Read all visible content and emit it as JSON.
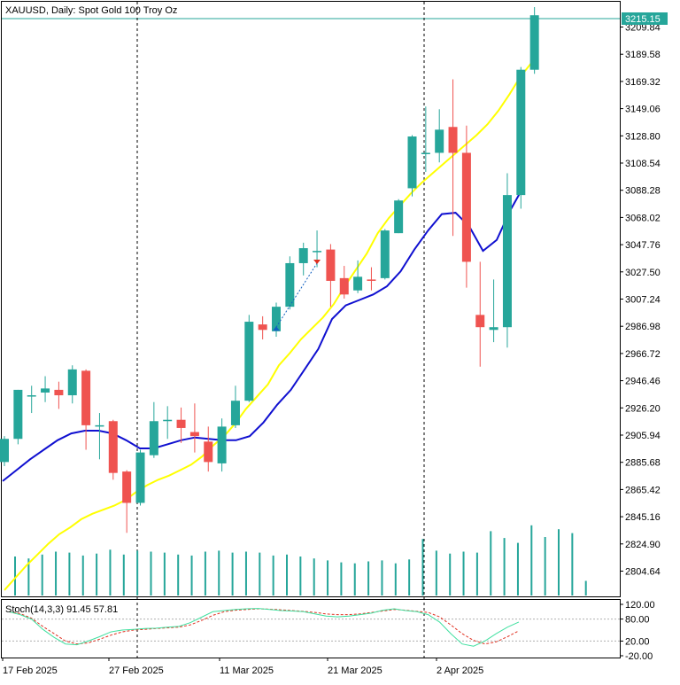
{
  "header": {
    "title": "XAUUSD, Daily:  Spot Gold 100 Troy Oz"
  },
  "price_axis": {
    "ticks": [
      "3209.84",
      "3189.58",
      "3169.32",
      "3149.06",
      "3128.80",
      "3108.54",
      "3088.28",
      "3068.02",
      "3047.76",
      "3027.50",
      "3007.24",
      "2986.98",
      "2966.72",
      "2946.46",
      "2926.20",
      "2905.94",
      "2885.68",
      "2865.42",
      "2845.16",
      "2824.90",
      "2804.64"
    ],
    "current_price_label": "3215.15"
  },
  "stoch_panel": {
    "label": "Stoch(14,3,3) 91.45 57.81",
    "ticks": [
      "120.00",
      "80.00",
      "20.00",
      "-20.00"
    ]
  },
  "time_axis": {
    "labels": [
      "17 Feb 2025",
      "27 Feb 2025",
      "11 Mar 2025",
      "21 Mar 2025",
      "2 Apr 2025"
    ]
  },
  "colors": {
    "bull": "#26a69a",
    "bear": "#ef5350",
    "ma_fast": "#1010d0",
    "ma_slow": "#ffff00",
    "stoch_main": "#40e0a0",
    "stoch_signal": "#e03020",
    "price_tag_bg": "#26a69a"
  },
  "chart_data": {
    "type": "candlestick",
    "title": "XAUUSD, Daily:  Spot Gold 100 Troy Oz",
    "ylim": [
      2789.0,
      3221.0
    ],
    "candles": [
      {
        "o": 2887.0,
        "h": 2906.0,
        "l": 2884.0,
        "c": 2904.0
      },
      {
        "o": 2904.0,
        "h": 2940.0,
        "l": 2900.0,
        "c": 2940.0
      },
      {
        "o": 2936.0,
        "h": 2943.0,
        "l": 2923.0,
        "c": 2936.0
      },
      {
        "o": 2938.0,
        "h": 2950.0,
        "l": 2931.0,
        "c": 2941.0
      },
      {
        "o": 2940.0,
        "h": 2946.0,
        "l": 2926.0,
        "c": 2936.0
      },
      {
        "o": 2936.0,
        "h": 2958.0,
        "l": 2930.0,
        "c": 2955.0
      },
      {
        "o": 2954.0,
        "h": 2955.0,
        "l": 2896.0,
        "c": 2914.0
      },
      {
        "o": 2913.0,
        "h": 2923.0,
        "l": 2889.0,
        "c": 2914.0
      },
      {
        "o": 2917.0,
        "h": 2918.0,
        "l": 2874.0,
        "c": 2879.0
      },
      {
        "o": 2880.0,
        "h": 2881.0,
        "l": 2835.0,
        "c": 2857.0
      },
      {
        "o": 2857.0,
        "h": 2896.0,
        "l": 2855.0,
        "c": 2894.0
      },
      {
        "o": 2892.0,
        "h": 2931.0,
        "l": 2890.0,
        "c": 2917.0
      },
      {
        "o": 2917.0,
        "h": 2928.0,
        "l": 2904.0,
        "c": 2918.0
      },
      {
        "o": 2918.0,
        "h": 2927.0,
        "l": 2901.0,
        "c": 2912.0
      },
      {
        "o": 2909.0,
        "h": 2930.0,
        "l": 2894.0,
        "c": 2906.0
      },
      {
        "o": 2902.0,
        "h": 2913.0,
        "l": 2880.0,
        "c": 2887.0
      },
      {
        "o": 2886.0,
        "h": 2919.0,
        "l": 2880.0,
        "c": 2913.0
      },
      {
        "o": 2914.0,
        "h": 2943.0,
        "l": 2912.0,
        "c": 2932.0
      },
      {
        "o": 2932.0,
        "h": 2995.0,
        "l": 2931.0,
        "c": 2990.0
      },
      {
        "o": 2988.0,
        "h": 2994.0,
        "l": 2977.0,
        "c": 2984.0
      },
      {
        "o": 2983.0,
        "h": 3004.0,
        "l": 2979.0,
        "c": 3001.0
      },
      {
        "o": 3001.0,
        "h": 3038.0,
        "l": 2999.0,
        "c": 3033.0
      },
      {
        "o": 3033.0,
        "h": 3048.0,
        "l": 3024.0,
        "c": 3044.0
      },
      {
        "o": 3042.0,
        "h": 3057.0,
        "l": 3030.0,
        "c": 3042.0
      },
      {
        "o": 3043.0,
        "h": 3047.0,
        "l": 3001.0,
        "c": 3020.0
      },
      {
        "o": 3022.0,
        "h": 3031.0,
        "l": 3007.0,
        "c": 3010.0
      },
      {
        "o": 3013.0,
        "h": 3035.0,
        "l": 3011.0,
        "c": 3023.0
      },
      {
        "o": 3021.0,
        "h": 3030.0,
        "l": 3013.0,
        "c": 3020.0
      },
      {
        "o": 3022.0,
        "h": 3058.0,
        "l": 3021.0,
        "c": 3057.0
      },
      {
        "o": 3055.0,
        "h": 3080.0,
        "l": 3055.0,
        "c": 3079.0
      },
      {
        "o": 3088.0,
        "h": 3127.0,
        "l": 3082.0,
        "c": 3126.0
      },
      {
        "o": 3113.0,
        "h": 3148.0,
        "l": 3100.0,
        "c": 3114.0
      },
      {
        "o": 3114.0,
        "h": 3146.0,
        "l": 3107.0,
        "c": 3131.0
      },
      {
        "o": 3133.0,
        "h": 3168.0,
        "l": 3053.0,
        "c": 3114.0
      },
      {
        "o": 3114.0,
        "h": 3134.0,
        "l": 3015.0,
        "c": 3034.0
      },
      {
        "o": 2995.0,
        "h": 3034.0,
        "l": 2957.0,
        "c": 2986.0
      },
      {
        "o": 2984.0,
        "h": 3021.0,
        "l": 2975.0,
        "c": 2986.0
      },
      {
        "o": 2986.0,
        "h": 3099.0,
        "l": 2971.0,
        "c": 3083.0
      },
      {
        "o": 3083.0,
        "h": 3177.0,
        "l": 3073.0,
        "c": 3175.0
      },
      {
        "o": 3175.0,
        "h": 3221.0,
        "l": 3172.0,
        "c": 3215.0
      }
    ],
    "ma_fast": {
      "x_start_index": 0,
      "values": [
        2873,
        2881,
        2889,
        2896,
        2903,
        2908,
        2910,
        2910,
        2908,
        2903,
        2897,
        2897,
        2900,
        2903,
        2905,
        2904,
        2903,
        2903,
        2906,
        2916,
        2929,
        2940,
        2955,
        2970,
        2992,
        3002,
        3006,
        3010,
        3016,
        3027,
        3043,
        3057,
        3069,
        3070,
        3060,
        3042,
        3050,
        3072,
        3090
      ]
    },
    "ma_slow": {
      "values": [
        2793,
        2802,
        2811,
        2819,
        2827,
        2834,
        2839,
        2845,
        2849,
        2852,
        2855,
        2859,
        2865,
        2870,
        2874,
        2877,
        2881,
        2885,
        2891,
        2899,
        2906,
        2915,
        2926,
        2935,
        2944,
        2958,
        2967,
        2977,
        2985,
        2993,
        3003,
        3016,
        3028,
        3040,
        3055,
        3066,
        3075,
        3084,
        3092,
        3099,
        3106,
        3113,
        3120,
        3127,
        3135,
        3145,
        3157,
        3170,
        3180
      ]
    },
    "volume": {
      "values": [
        0.4,
        0.38,
        0.42,
        0.45,
        0.44,
        0.41,
        0.43,
        0.47,
        0.42,
        0.46,
        0.45,
        0.44,
        0.42,
        0.41,
        0.45,
        0.46,
        0.44,
        0.45,
        0.44,
        0.41,
        0.42,
        0.4,
        0.38,
        0.36,
        0.34,
        0.33,
        0.35,
        0.36,
        0.33,
        0.37,
        0.58,
        0.46,
        0.43,
        0.45,
        0.44,
        0.66,
        0.59,
        0.54,
        0.72,
        0.6,
        0.68,
        0.64,
        0.15
      ],
      "max": 1.0
    },
    "stoch": {
      "ylim": [
        -20,
        120
      ],
      "main": [
        100,
        92,
        80,
        52,
        30,
        12,
        10,
        20,
        32,
        45,
        50,
        52,
        54,
        55,
        58,
        60,
        70,
        85,
        100,
        103,
        106,
        108,
        109,
        106,
        103,
        102,
        100,
        94,
        88,
        86,
        88,
        92,
        96,
        104,
        108,
        103,
        100,
        92,
        72,
        40,
        12,
        6,
        20,
        40,
        58,
        72
      ],
      "signal": [
        100,
        95,
        82,
        60,
        40,
        20,
        12,
        15,
        25,
        36,
        45,
        50,
        52,
        54,
        56,
        58,
        64,
        76,
        90,
        100,
        104,
        106,
        108,
        107,
        105,
        103,
        101,
        98,
        94,
        92,
        92,
        94,
        98,
        102,
        106,
        104,
        101,
        98,
        86,
        64,
        40,
        22,
        12,
        18,
        32,
        48
      ]
    },
    "signals": [
      {
        "type": "buy",
        "index": 20,
        "price": 2986
      },
      {
        "type": "sell",
        "index": 23,
        "price": 3033
      }
    ]
  }
}
